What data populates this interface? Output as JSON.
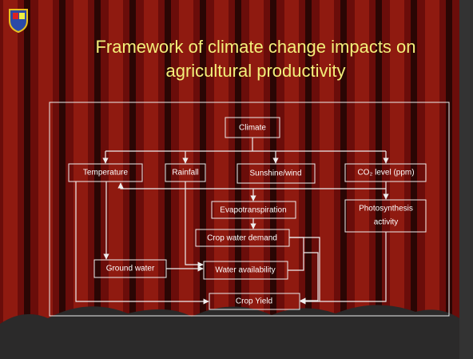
{
  "header": {
    "title": [
      "Framework of climate change impacts on",
      "agricultural productivity"
    ]
  },
  "nodes": [
    {
      "label": "Climate"
    },
    {
      "label": "Temperature"
    },
    {
      "label": "Rainfall"
    },
    {
      "label": "Sunshine/wind"
    },
    {
      "label": "CO₂ level (ppm)"
    },
    {
      "label": "Evapotranspiration"
    },
    {
      "label": [
        "Photosynthesis",
        "activity"
      ]
    },
    {
      "label": "Crop water demand"
    },
    {
      "label": "Ground water"
    },
    {
      "label": "Water availability"
    },
    {
      "label": "Crop Yield"
    }
  ]
}
